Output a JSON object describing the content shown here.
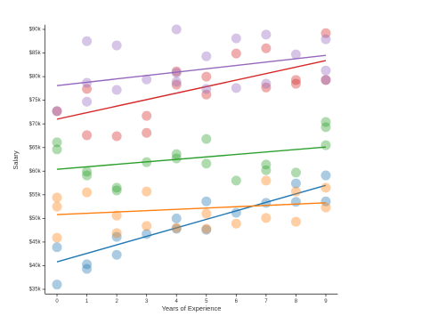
{
  "chart_data": {
    "type": "scatter",
    "x_label": "Years of Experience",
    "y_label": "Salary",
    "xlim": [
      -0.4,
      9.4
    ],
    "ylim": [
      34000,
      91000
    ],
    "xticks": [
      0,
      1,
      2,
      3,
      4,
      5,
      6,
      7,
      8,
      9
    ],
    "yticks": [
      {
        "value": 35000,
        "label": "$35k"
      },
      {
        "value": 40000,
        "label": "$40k"
      },
      {
        "value": 45000,
        "label": "$45k"
      },
      {
        "value": 50000,
        "label": "$50k"
      },
      {
        "value": 55000,
        "label": "$55k"
      },
      {
        "value": 60000,
        "label": "$60k"
      },
      {
        "value": 65000,
        "label": "$65k"
      },
      {
        "value": 70000,
        "label": "$70k"
      },
      {
        "value": 75000,
        "label": "$75k"
      },
      {
        "value": 80000,
        "label": "$80k"
      },
      {
        "value": 85000,
        "label": "$85k"
      },
      {
        "value": 90000,
        "label": "$90k"
      }
    ],
    "series": [
      {
        "color": "#1f77b4",
        "x": [
          0,
          0,
          1,
          1,
          2,
          2,
          3,
          4,
          4,
          5,
          5,
          6,
          7,
          8,
          8,
          9,
          9
        ],
        "values": [
          43900,
          36000,
          40300,
          39300,
          46100,
          42300,
          46700,
          47800,
          50000,
          47600,
          53600,
          51200,
          53300,
          57400,
          53500,
          59100,
          53600
        ],
        "trend": {
          "x": [
            0,
            9
          ],
          "y": [
            40800,
            57000
          ]
        }
      },
      {
        "color": "#ff7f0e",
        "x": [
          0,
          0,
          0,
          1,
          2,
          2,
          3,
          3,
          4,
          5,
          5,
          6,
          7,
          7,
          8,
          8,
          9,
          9
        ],
        "values": [
          54400,
          52500,
          45900,
          55500,
          50600,
          46900,
          55700,
          48400,
          48000,
          51000,
          47800,
          48900,
          58000,
          50100,
          55700,
          49300,
          56500,
          52300
        ],
        "trend": {
          "x": [
            0,
            9
          ],
          "y": [
            50800,
            53300
          ]
        }
      },
      {
        "color": "#2ca02c",
        "x": [
          0,
          0,
          1,
          1,
          2,
          2,
          3,
          4,
          4,
          5,
          5,
          6,
          7,
          7,
          8,
          9,
          9,
          9
        ],
        "values": [
          66100,
          64600,
          59900,
          59100,
          56500,
          55900,
          61900,
          63600,
          62700,
          66800,
          61600,
          58000,
          61400,
          60200,
          59700,
          70400,
          69300,
          65500
        ],
        "trend": {
          "x": [
            0,
            9
          ],
          "y": [
            60400,
            65100
          ]
        }
      },
      {
        "color": "#d62728",
        "x": [
          0,
          1,
          1,
          2,
          3,
          3,
          4,
          4,
          5,
          5,
          6,
          7,
          7,
          8,
          8,
          9,
          9
        ],
        "values": [
          72700,
          77400,
          67600,
          67400,
          71700,
          68100,
          81100,
          78300,
          80000,
          76200,
          84900,
          86000,
          77700,
          79300,
          78500,
          89200,
          79300
        ],
        "trend": {
          "x": [
            0,
            9
          ],
          "y": [
            71000,
            83400
          ]
        }
      },
      {
        "color": "#9467bd",
        "x": [
          0,
          1,
          1,
          1,
          2,
          2,
          3,
          4,
          4,
          4,
          5,
          5,
          6,
          6,
          7,
          7,
          8,
          9,
          9,
          9
        ],
        "values": [
          72700,
          87500,
          78700,
          74700,
          86600,
          77200,
          79400,
          90000,
          80800,
          78900,
          84300,
          77400,
          88100,
          77600,
          88900,
          78500,
          84700,
          87900,
          81300,
          79300
        ],
        "trend": {
          "x": [
            0,
            9
          ],
          "y": [
            78100,
            84500
          ]
        }
      }
    ]
  }
}
